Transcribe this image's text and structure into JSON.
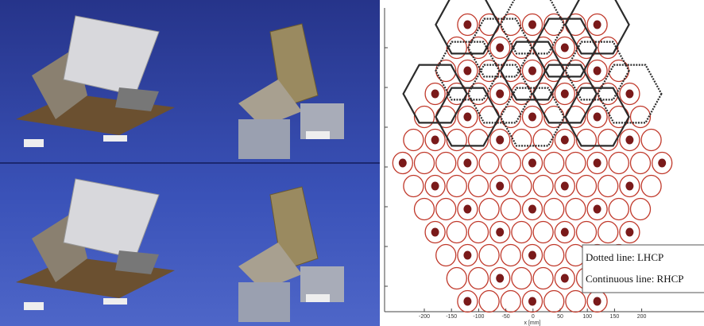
{
  "legend": {
    "items": [
      "Dotted line: LHCP",
      "Continuous line: RHCP"
    ]
  },
  "plot": {
    "x_axis_label": "x [mm]",
    "x_tick_labels": [
      "-200",
      "-150",
      "-100",
      "-50",
      "0",
      "50",
      "100",
      "150",
      "200"
    ]
  }
}
